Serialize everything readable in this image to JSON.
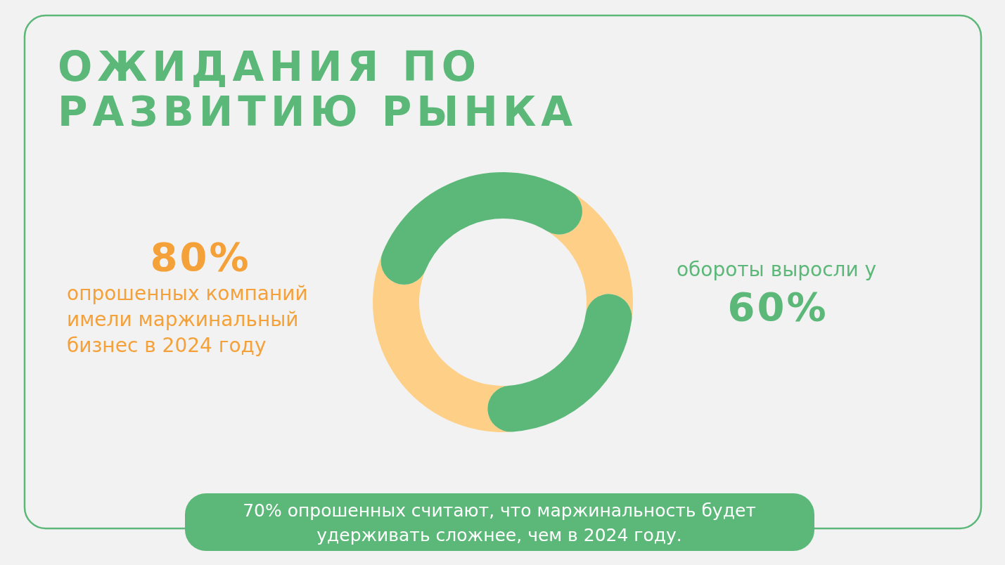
{
  "chart_data": {
    "type": "donut",
    "title": "ОЖИДАНИЯ ПО РАЗВИТИЮ РЫНКА",
    "categories": [
      null,
      null,
      null,
      null
    ],
    "values": [
      33,
      13,
      27,
      27
    ],
    "colors": [
      "#5bb878",
      "#fecf86",
      "#5bb878",
      "#fecf86"
    ],
    "annotations": [
      "80%",
      "опрошенных компаний имели маржинальный бизнес в 2024 году",
      "обороты выросли у",
      "60%",
      "70% опрошенных считают, что маржинальность будет удерживать сложнее, чем в 2024 году."
    ]
  }
}
